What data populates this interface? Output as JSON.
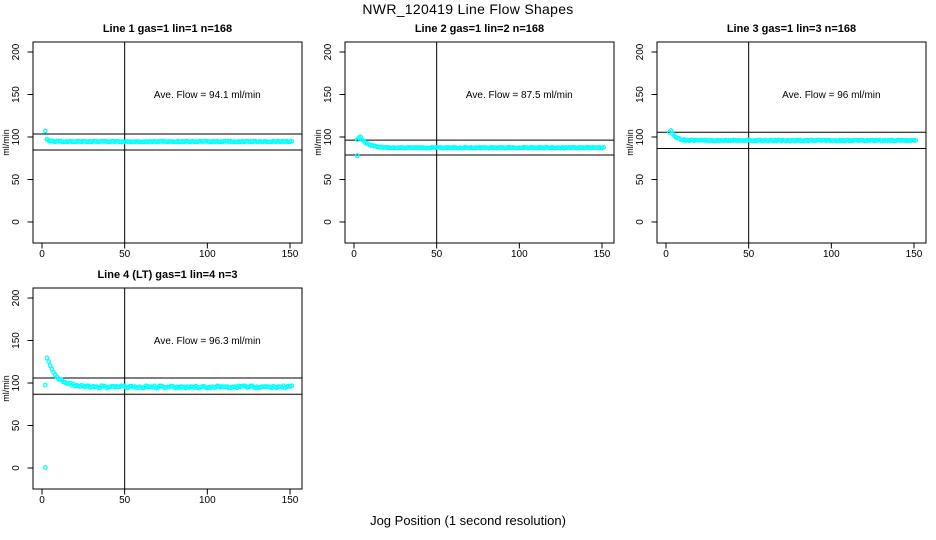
{
  "chart_data": {
    "type": "scatter",
    "title": "NWR_120419  Line Flow Shapes",
    "xlabel": "Jog Position (1 second resolution)",
    "ylabel": "ml/min",
    "x_ticks": [
      0,
      50,
      100,
      150
    ],
    "y_ticks": [
      0,
      50,
      100,
      150,
      200
    ],
    "xlim": [
      -6,
      157
    ],
    "ylim": [
      -25,
      211
    ],
    "grid": false,
    "point_color": "#00FFFF",
    "line_color": "#000000",
    "vline_x": 50,
    "panels": [
      {
        "title": "Line 1 gas=1 lin=1 n=168",
        "ave_flow": 94.1,
        "annotation": "Ave. Flow =  94.1  ml/min",
        "annotation_xy": [
          100,
          150
        ],
        "hline_upper": 103.5,
        "hline_lower": 84.7,
        "outliers": [
          [
            2,
            107
          ]
        ],
        "pre_points": [],
        "series_model": {
          "x_start": 3,
          "x_end": 151,
          "y_start": 97.5,
          "y_settle": 94.6,
          "tau": 1.8,
          "noise": 0.45,
          "seed": 11
        }
      },
      {
        "title": "Line 2 gas=1 lin=2 n=168",
        "ave_flow": 87.5,
        "annotation": "Ave. Flow =  87.5  ml/min",
        "annotation_xy": [
          100,
          150
        ],
        "hline_upper": 96.3,
        "hline_lower": 78.8,
        "outliers": [
          [
            2,
            78
          ]
        ],
        "pre_points": [
          [
            2,
            97
          ],
          [
            3,
            99.3
          ]
        ],
        "series_model": {
          "x_start": 4,
          "x_end": 151,
          "y_start": 100,
          "y_settle": 87.4,
          "tau": 4.2,
          "noise": 0.5,
          "seed": 22
        }
      },
      {
        "title": "Line 3 gas=1 lin=3 n=168",
        "ave_flow": 96,
        "annotation": "Ave. Flow =  96  ml/min",
        "annotation_xy": [
          100,
          150
        ],
        "hline_upper": 105.6,
        "hline_lower": 86.4,
        "outliers": [],
        "pre_points": [
          [
            2,
            105.5
          ]
        ],
        "series_model": {
          "x_start": 3,
          "x_end": 151,
          "y_start": 108,
          "y_settle": 95.9,
          "tau": 2.6,
          "noise": 0.55,
          "seed": 33
        }
      },
      {
        "title": "Line 4 (LT) gas=1 lin=4 n=3",
        "ave_flow": 96.3,
        "annotation": "Ave. Flow =  96.3  ml/min",
        "annotation_xy": [
          100,
          150
        ],
        "hline_upper": 105.9,
        "hline_lower": 86.7,
        "outliers": [
          [
            2,
            0.5
          ],
          [
            2,
            97.5
          ]
        ],
        "pre_points": [],
        "series_model": {
          "x_start": 3,
          "x_end": 151,
          "y_start": 129,
          "y_settle": 95.4,
          "tau": 6.0,
          "noise": 1.4,
          "seed": 44
        }
      }
    ]
  }
}
